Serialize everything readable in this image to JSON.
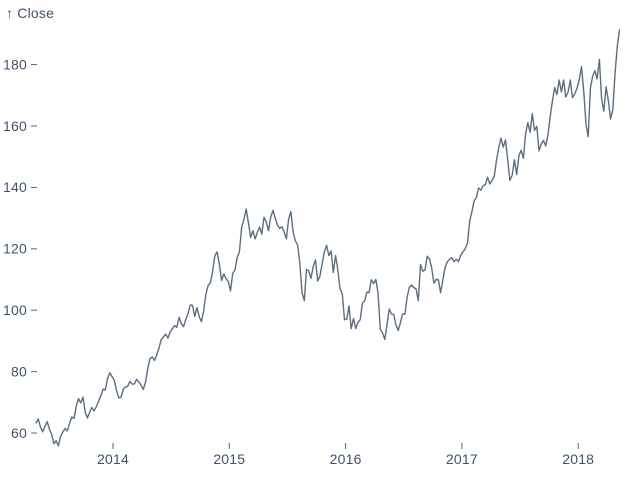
{
  "page": {
    "background": "#ffffff"
  },
  "colors": {
    "axis_text": "#42526b",
    "tick_stroke": "#55657a",
    "line_stroke": "#5d6d82",
    "background": "#ffffff"
  },
  "chart_data": {
    "type": "line",
    "title": "",
    "subtitle": "",
    "xlabel": "",
    "ylabel": "Close",
    "ylabel_display": "↑ Close",
    "legend": "none",
    "grid": false,
    "x_ticks": [
      2014,
      2015,
      2016,
      2017,
      2018
    ],
    "y_ticks": [
      60,
      80,
      100,
      120,
      140,
      160,
      180
    ],
    "xlim": [
      2013.34,
      2018.36
    ],
    "ylim": [
      55,
      195
    ],
    "x_unit": "year (weekly close samples, evenly spaced)",
    "series": [
      {
        "name": "Close",
        "color": "#5d6d82",
        "x_start": 2013.338,
        "x_end": 2018.355,
        "values": [
          63.3,
          64.6,
          61.9,
          60.4,
          62.2,
          63.7,
          61.2,
          59.5,
          56.5,
          57.5,
          55.8,
          59.0,
          60.3,
          61.5,
          60.7,
          63.1,
          65.2,
          64.7,
          68.7,
          71.2,
          69.8,
          71.7,
          66.8,
          64.9,
          66.8,
          68.3,
          67.2,
          68.6,
          70.4,
          72.1,
          74.3,
          74.0,
          77.7,
          79.6,
          78.4,
          77.2,
          73.8,
          71.5,
          71.6,
          74.2,
          75.0,
          75.2,
          76.8,
          75.9,
          76.0,
          77.5,
          76.6,
          75.5,
          74.2,
          76.7,
          81.1,
          84.2,
          84.8,
          83.6,
          85.4,
          87.7,
          90.4,
          91.3,
          92.2,
          90.9,
          92.9,
          94.0,
          95.0,
          94.4,
          97.7,
          95.6,
          94.7,
          97.0,
          98.9,
          101.7,
          101.6,
          98.0,
          100.8,
          97.9,
          96.3,
          99.8,
          105.2,
          108.0,
          109.0,
          112.7,
          117.8,
          119.0,
          115.0,
          109.7,
          111.8,
          110.4,
          109.3,
          106.3,
          112.0,
          113.1,
          117.2,
          119.0,
          127.1,
          129.5,
          133.0,
          128.5,
          123.6,
          125.9,
          123.2,
          125.3,
          127.1,
          124.8,
          130.3,
          128.7,
          125.9,
          130.3,
          132.5,
          130.0,
          127.8,
          126.6,
          127.2,
          125.4,
          123.3,
          129.6,
          132.1,
          125.5,
          122.6,
          121.3,
          115.5,
          105.8,
          103.1,
          113.3,
          112.8,
          110.4,
          114.2,
          116.4,
          109.5,
          111.0,
          115.2,
          119.1,
          121.1,
          117.8,
          119.3,
          112.3,
          117.8,
          113.2,
          107.0,
          105.3,
          96.9,
          97.1,
          101.4,
          94.0,
          97.3,
          94.0,
          96.0,
          96.9,
          102.3,
          103.0,
          105.9,
          105.7,
          109.9,
          108.7,
          110.0,
          105.7,
          93.7,
          92.7,
          90.5,
          95.2,
          100.4,
          98.8,
          98.6,
          95.3,
          93.4,
          95.9,
          98.8,
          98.7,
          104.2,
          107.5,
          108.2,
          107.4,
          106.9,
          103.1,
          114.9,
          112.7,
          113.1,
          117.6,
          116.6,
          113.7,
          108.8,
          110.1,
          109.9,
          105.7,
          109.9,
          113.9,
          115.8,
          116.5,
          117.1,
          115.8,
          116.6,
          115.8,
          117.9,
          119.0,
          120.0,
          121.9,
          129.1,
          132.1,
          135.7,
          136.7,
          139.8,
          139.1,
          140.6,
          140.9,
          143.3,
          141.1,
          142.3,
          143.7,
          148.9,
          153.0,
          156.1,
          153.1,
          155.5,
          149.0,
          142.3,
          144.0,
          149.0,
          144.2,
          150.3,
          152.1,
          149.5,
          157.5,
          161.1,
          157.9,
          164.0,
          158.6,
          159.9,
          151.9,
          154.1,
          155.3,
          153.5,
          157.0,
          163.1,
          168.1,
          172.5,
          170.2,
          175.0,
          171.1,
          175.0,
          169.4,
          171.1,
          175.0,
          169.2,
          170.5,
          172.3,
          175.0,
          179.3,
          171.5,
          160.5,
          156.5,
          172.4,
          176.2,
          178.0,
          175.3,
          181.7,
          168.8,
          164.9,
          172.8,
          168.4,
          162.3,
          165.3,
          176.9,
          186.0,
          191.3
        ]
      }
    ]
  }
}
